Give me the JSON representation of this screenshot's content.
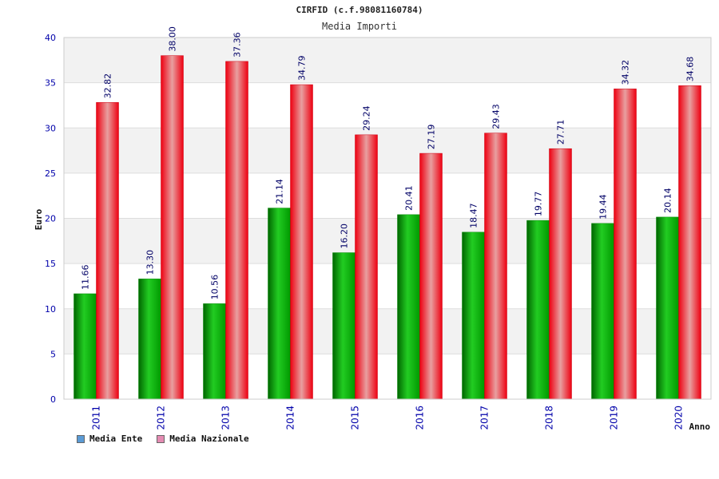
{
  "chart_data": {
    "type": "bar",
    "title": "CIRFID (c.f.98081160784)",
    "subtitle": "Media Importi",
    "xlabel": "Anno",
    "ylabel": "Euro",
    "ylim": [
      0,
      40
    ],
    "yticks": [
      0,
      5,
      10,
      15,
      20,
      25,
      30,
      35,
      40
    ],
    "grid": true,
    "legend_position": "bottom-left",
    "categories": [
      "2011",
      "2012",
      "2013",
      "2014",
      "2015",
      "2016",
      "2017",
      "2018",
      "2019",
      "2020"
    ],
    "series": [
      {
        "name": "Media Ente",
        "color": "#00b000",
        "legend_color": "#5b9bd5",
        "values": [
          11.66,
          13.3,
          10.56,
          21.14,
          16.2,
          20.41,
          18.47,
          19.77,
          19.44,
          20.14
        ],
        "labels": [
          "11.66",
          "13.30",
          "10.56",
          "21.14",
          "16.20",
          "20.41",
          "18.47",
          "19.77",
          "19.44",
          "20.14"
        ]
      },
      {
        "name": "Media Nazionale",
        "color": "#ee1122",
        "legend_color": "#e48bb2",
        "values": [
          32.82,
          38.0,
          37.36,
          34.79,
          29.24,
          27.19,
          29.43,
          27.71,
          34.32,
          34.68
        ],
        "labels": [
          "32.82",
          "38.00",
          "37.36",
          "34.79",
          "29.24",
          "27.19",
          "29.43",
          "27.71",
          "34.32",
          "34.68"
        ]
      }
    ]
  }
}
